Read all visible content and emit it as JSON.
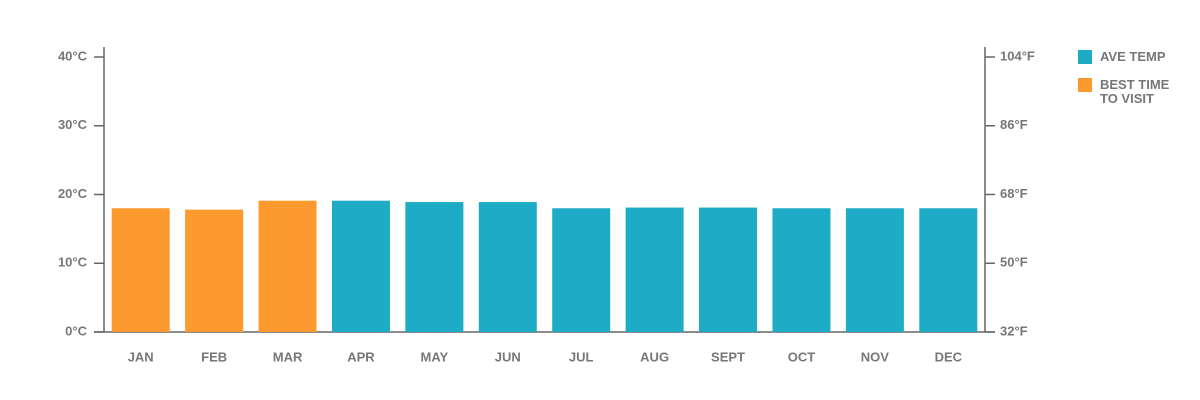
{
  "chart_data": {
    "type": "bar",
    "categories": [
      "JAN",
      "FEB",
      "MAR",
      "APR",
      "MAY",
      "JUN",
      "JUL",
      "AUG",
      "SEPT",
      "OCT",
      "NOV",
      "DEC"
    ],
    "values": [
      18,
      17.8,
      19.1,
      19.1,
      18.9,
      18.9,
      18,
      18.1,
      18.1,
      18,
      18,
      18
    ],
    "bar_colors": [
      "#fd9a2f",
      "#fd9a2f",
      "#fd9a2f",
      "#1eabc5",
      "#1eabc5",
      "#1eabc5",
      "#1eabc5",
      "#1eabc5",
      "#1eabc5",
      "#1eabc5",
      "#1eabc5",
      "#1eabc5"
    ],
    "legend": [
      {
        "name": "AVE TEMP",
        "color": "#1eabc5"
      },
      {
        "name": "BEST TIME TO VISIT",
        "color": "#fd9a2f"
      }
    ],
    "ylim": [
      0,
      40
    ],
    "yticks": [
      {
        "value": 0,
        "label": "0°C"
      },
      {
        "value": 10,
        "label": "10°C"
      },
      {
        "value": 20,
        "label": "20°C"
      },
      {
        "value": 30,
        "label": "30°C"
      },
      {
        "value": 40,
        "label": "40°C"
      }
    ],
    "y2lim": [
      32,
      104
    ],
    "y2ticks": [
      {
        "value": 32,
        "label": "32°F"
      },
      {
        "value": 50,
        "label": "50°F"
      },
      {
        "value": 68,
        "label": "68°F"
      },
      {
        "value": 86,
        "label": "86°F"
      },
      {
        "value": 104,
        "label": "104°F"
      }
    ]
  }
}
